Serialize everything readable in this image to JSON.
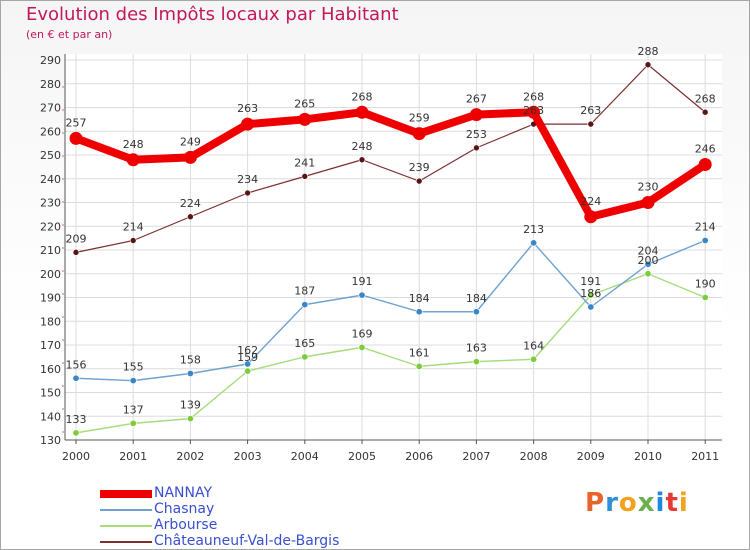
{
  "title": "Evolution des Impôts locaux par Habitant",
  "subtitle": "(en € et par an)",
  "brand": {
    "text": "Proxiti",
    "letter_colors": [
      "#e8642c",
      "#2f8fd8",
      "#f2a21c",
      "#6ab04c",
      "#1e88e5",
      "#e53935",
      "#f2a21c"
    ]
  },
  "chart_data": {
    "type": "line",
    "title": "Evolution des Impôts locaux par Habitant",
    "subtitle": "(en € et par an)",
    "x": [
      "2000",
      "2001",
      "2002",
      "2003",
      "2004",
      "2005",
      "2006",
      "2007",
      "2008",
      "2009",
      "2010",
      "2011"
    ],
    "ylim": [
      130,
      290
    ],
    "yticks": [
      130,
      140,
      150,
      160,
      170,
      180,
      190,
      200,
      210,
      220,
      230,
      240,
      250,
      260,
      270,
      280,
      290
    ],
    "grid": true,
    "legend_position": "bottom-left",
    "series": [
      {
        "name": "NANNAY",
        "color": "#ee0000",
        "marker_color": "#ee0000",
        "values": [
          257,
          248,
          249,
          263,
          265,
          268,
          259,
          267,
          268,
          224,
          230,
          246
        ]
      },
      {
        "name": "Chasnay",
        "color": "#6fa2cf",
        "marker_color": "#3a87c8",
        "values": [
          156,
          155,
          158,
          162,
          187,
          191,
          184,
          184,
          213,
          186,
          204,
          214
        ]
      },
      {
        "name": "Arbourse",
        "color": "#a6dc7c",
        "marker_color": "#7dcc3c",
        "values": [
          133,
          137,
          139,
          159,
          165,
          169,
          161,
          163,
          164,
          191,
          200,
          190
        ]
      },
      {
        "name": "Châteauneuf-Val-de-Bargis",
        "color": "#7b2f2f",
        "marker_color": "#5a1414",
        "values": [
          209,
          214,
          224,
          234,
          241,
          248,
          239,
          253,
          263,
          263,
          288,
          268
        ]
      }
    ]
  }
}
